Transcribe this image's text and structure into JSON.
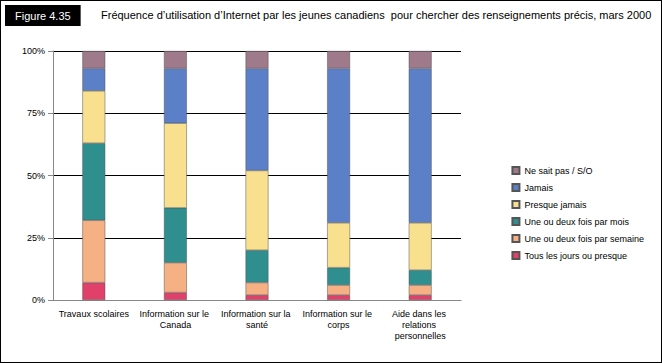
{
  "chart_data": {
    "type": "bar",
    "title": "Fréquence d’utilisation d’Internet par les jeunes canadiens  pour chercher des renseignements précis, mars 2000",
    "annotations": [
      "Figure 4.35"
    ],
    "categories": [
      "Travaux scolaires",
      "Information sur le Canada",
      "Information sur la santé",
      "Information sur le corps",
      "Aide dans les relations personnelles"
    ],
    "series": [
      {
        "name": "Tous les jours ou presque",
        "color": "#e0406a",
        "values": [
          7,
          3,
          2,
          2,
          2
        ]
      },
      {
        "name": "Une ou deux fois par semaine",
        "color": "#f5b183",
        "values": [
          25,
          12,
          5,
          4,
          4
        ]
      },
      {
        "name": "Une ou deux fois par mois",
        "color": "#2f8f8f",
        "values": [
          31,
          22,
          13,
          7,
          6
        ]
      },
      {
        "name": "Presque jamais",
        "color": "#f8e08e",
        "values": [
          21,
          34,
          32,
          18,
          19
        ]
      },
      {
        "name": "Jamais",
        "color": "#5b80c8",
        "values": [
          9,
          22,
          41,
          62,
          62
        ]
      },
      {
        "name": "Ne sait pas / S/O",
        "color": "#9e7a8a",
        "values": [
          7,
          7,
          7,
          7,
          7
        ]
      }
    ],
    "ylim": [
      0,
      100
    ],
    "yticks": [
      {
        "value": 0,
        "label": "0%"
      },
      {
        "value": 25,
        "label": "25%"
      },
      {
        "value": 50,
        "label": "50%"
      },
      {
        "value": 75,
        "label": "75%"
      },
      {
        "value": 100,
        "label": "100%"
      }
    ],
    "stacked": true,
    "grid": true,
    "legend": "right"
  }
}
